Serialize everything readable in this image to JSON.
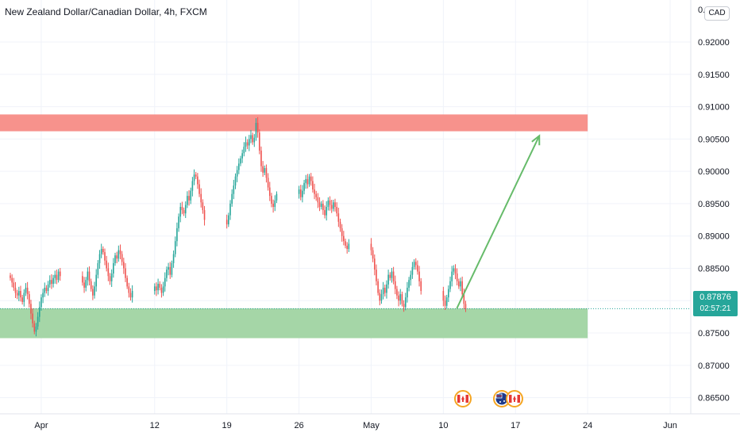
{
  "title": "New Zealand Dollar/Canadian Dollar, 4h, FXCM",
  "currency_badge": "CAD",
  "last_price": "0.87876",
  "countdown": "02:57:21",
  "top_tick_label": "0.9…",
  "colors": {
    "up": "#26a69a",
    "down": "#ef5350",
    "resistance_zone": "#f7928c",
    "support_zone": "#a5d6a7",
    "arrow": "#66bb6a",
    "grid": "#f0f3fa",
    "price_line": "#26a69a"
  },
  "event_icons": [
    "canada-flag-icon",
    "australia-flag-icon",
    "canada-flag-icon"
  ],
  "chart_data": {
    "type": "candlestick",
    "title": "New Zealand Dollar/Canadian Dollar, 4h, FXCM",
    "y_ticks": [
      "0.92000",
      "0.91500",
      "0.91000",
      "0.90500",
      "0.90000",
      "0.89500",
      "0.89000",
      "0.88500",
      "0.88000",
      "0.87500",
      "0.87000",
      "0.86500"
    ],
    "y_tick_values": [
      0.92,
      0.915,
      0.91,
      0.905,
      0.9,
      0.895,
      0.89,
      0.885,
      0.88,
      0.875,
      0.87,
      0.865
    ],
    "ylim": [
      0.8625,
      0.9265
    ],
    "x_ticks": [
      "Apr",
      "12",
      "19",
      "26",
      "May",
      "10",
      "17",
      "24",
      "Jun"
    ],
    "x_tick_dates": [
      "2021-04-01",
      "2021-04-12",
      "2021-04-19",
      "2021-04-26",
      "2021-05-03",
      "2021-05-10",
      "2021-05-17",
      "2021-05-24",
      "2021-06-01"
    ],
    "xlim": [
      "2021-03-28",
      "2021-06-03"
    ],
    "grid": true,
    "resistance_zone": {
      "y_low": 0.9062,
      "y_high": 0.9088,
      "x_end": "2021-05-24"
    },
    "support_zone": {
      "y_low": 0.8742,
      "y_high": 0.8788,
      "x_end": "2021-05-24"
    },
    "projection_arrow": {
      "from": {
        "date": "2021-05-11",
        "price": 0.8788
      },
      "to": {
        "date": "2021-05-19",
        "price": 0.9055
      }
    },
    "last_price": 0.87876,
    "candles_close": [
      0.8835,
      0.8828,
      0.882,
      0.8812,
      0.8808,
      0.8815,
      0.8805,
      0.8798,
      0.8812,
      0.882,
      0.881,
      0.8795,
      0.878,
      0.8765,
      0.8752,
      0.876,
      0.8775,
      0.879,
      0.8805,
      0.8812,
      0.882,
      0.8815,
      0.8825,
      0.8832,
      0.8826,
      0.8835,
      0.884,
      0.8832,
      0.8845,
      0.8838,
      0.8828,
      0.882,
      0.8832,
      0.8845,
      0.883,
      0.8818,
      0.8808,
      0.8822,
      0.884,
      0.8858,
      0.8872,
      0.888,
      0.8875,
      0.8862,
      0.885,
      0.8838,
      0.883,
      0.8842,
      0.8858,
      0.887,
      0.8865,
      0.8878,
      0.8872,
      0.886,
      0.885,
      0.8835,
      0.8822,
      0.8812,
      0.8805,
      0.8815,
      0.8822,
      0.8816,
      0.8826,
      0.882,
      0.8812,
      0.8822,
      0.8835,
      0.8848,
      0.8852,
      0.884,
      0.8858,
      0.8872,
      0.8892,
      0.8912,
      0.893,
      0.8945,
      0.894,
      0.8935,
      0.8948,
      0.8962,
      0.8955,
      0.897,
      0.8985,
      0.8995,
      0.8992,
      0.898,
      0.8965,
      0.8952,
      0.894,
      0.8925,
      0.8918,
      0.8932,
      0.895,
      0.8965,
      0.8978,
      0.8992,
      0.9002,
      0.9012,
      0.902,
      0.9028,
      0.9038,
      0.9045,
      0.904,
      0.905,
      0.9056,
      0.9045,
      0.9052,
      0.9075,
      0.906,
      0.9032,
      0.9008,
      0.8998,
      0.9005,
      0.899,
      0.8975,
      0.8962,
      0.895,
      0.8945,
      0.8955,
      0.8965,
      0.8972,
      0.896,
      0.897,
      0.8982,
      0.8988,
      0.898,
      0.8992,
      0.8985,
      0.8972,
      0.8965,
      0.896,
      0.8952,
      0.8945,
      0.895,
      0.894,
      0.8932,
      0.8945,
      0.8955,
      0.8948,
      0.8942,
      0.8952,
      0.8945,
      0.8935,
      0.8922,
      0.8912,
      0.89,
      0.8892,
      0.8885,
      0.888,
      0.8888,
      0.8878,
      0.8865,
      0.8848,
      0.883,
      0.8812,
      0.88,
      0.881,
      0.882,
      0.8812,
      0.8825,
      0.884,
      0.8835,
      0.8845,
      0.883,
      0.8818,
      0.8808,
      0.88,
      0.881,
      0.8795,
      0.879,
      0.8805,
      0.882,
      0.8832,
      0.884,
      0.8852,
      0.886,
      0.8855,
      0.8845,
      0.883,
      0.8815,
      0.88,
      0.8792,
      0.8805,
      0.8818,
      0.883,
      0.8845,
      0.885,
      0.8842,
      0.883,
      0.8822,
      0.883,
      0.881,
      0.8795,
      0.8788
    ]
  }
}
